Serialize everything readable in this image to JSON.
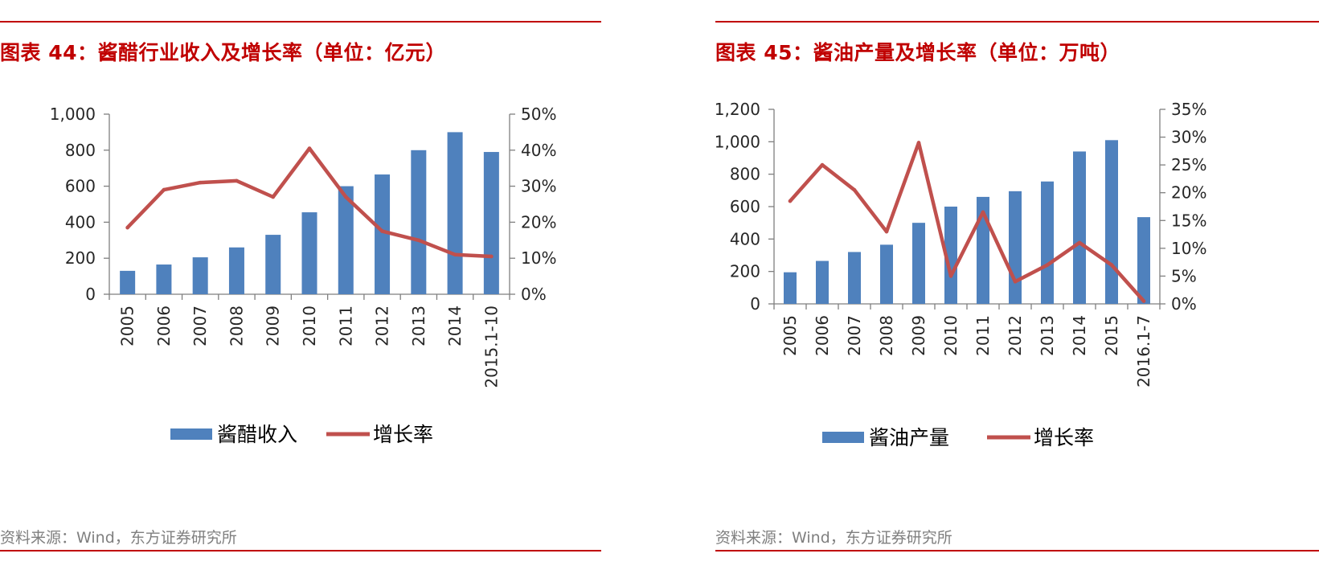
{
  "colors": {
    "accent": "#c00000",
    "bar": "#4f81bd",
    "line": "#c0504d",
    "axis": "#7f7f7f",
    "text": "#262626",
    "source": "#7f7f7f"
  },
  "left": {
    "title": "图表 44：酱醋行业收入及增长率（单位：亿元）",
    "source": "资料来源：Wind，东方证券研究所",
    "chart_data": {
      "type": "bar",
      "categories": [
        "2005",
        "2006",
        "2007",
        "2008",
        "2009",
        "2010",
        "2011",
        "2012",
        "2013",
        "2014",
        "2015.1-10"
      ],
      "series": [
        {
          "name": "酱醋收入",
          "type": "bar",
          "axis": "left",
          "values": [
            130,
            165,
            205,
            260,
            330,
            455,
            600,
            665,
            800,
            900,
            790
          ]
        },
        {
          "name": "增长率",
          "type": "line",
          "axis": "right",
          "values": [
            18.5,
            29,
            31,
            31.5,
            27,
            40.5,
            27,
            17.5,
            15,
            11,
            10.5
          ]
        }
      ],
      "y_left": {
        "min": 0,
        "max": 1000,
        "ticks": [
          "0",
          "200",
          "400",
          "600",
          "800",
          "1,000"
        ]
      },
      "y_right": {
        "min": 0,
        "max": 50,
        "ticks": [
          "0%",
          "10%",
          "20%",
          "30%",
          "40%",
          "50%"
        ]
      },
      "legend": [
        "酱醋收入",
        "增长率"
      ]
    }
  },
  "right": {
    "title": "图表 45：酱油产量及增长率（单位：万吨）",
    "source": "资料来源：Wind，东方证券研究所",
    "chart_data": {
      "type": "bar",
      "categories": [
        "2005",
        "2006",
        "2007",
        "2008",
        "2009",
        "2010",
        "2011",
        "2012",
        "2013",
        "2014",
        "2015",
        "2016.1-7"
      ],
      "series": [
        {
          "name": "酱油产量",
          "type": "bar",
          "axis": "left",
          "values": [
            195,
            265,
            320,
            365,
            500,
            600,
            660,
            695,
            755,
            940,
            1010,
            535
          ]
        },
        {
          "name": "增长率",
          "type": "line",
          "axis": "right",
          "values": [
            18.5,
            25,
            20.5,
            13,
            29,
            5,
            16.5,
            4,
            7,
            11,
            7,
            0.5
          ]
        }
      ],
      "y_left": {
        "min": 0,
        "max": 1200,
        "ticks": [
          "0",
          "200",
          "400",
          "600",
          "800",
          "1,000",
          "1,200"
        ]
      },
      "y_right": {
        "min": 0,
        "max": 35,
        "ticks": [
          "0%",
          "5%",
          "10%",
          "15%",
          "20%",
          "25%",
          "30%",
          "35%"
        ]
      },
      "legend": [
        "酱油产量",
        "增长率"
      ]
    }
  }
}
